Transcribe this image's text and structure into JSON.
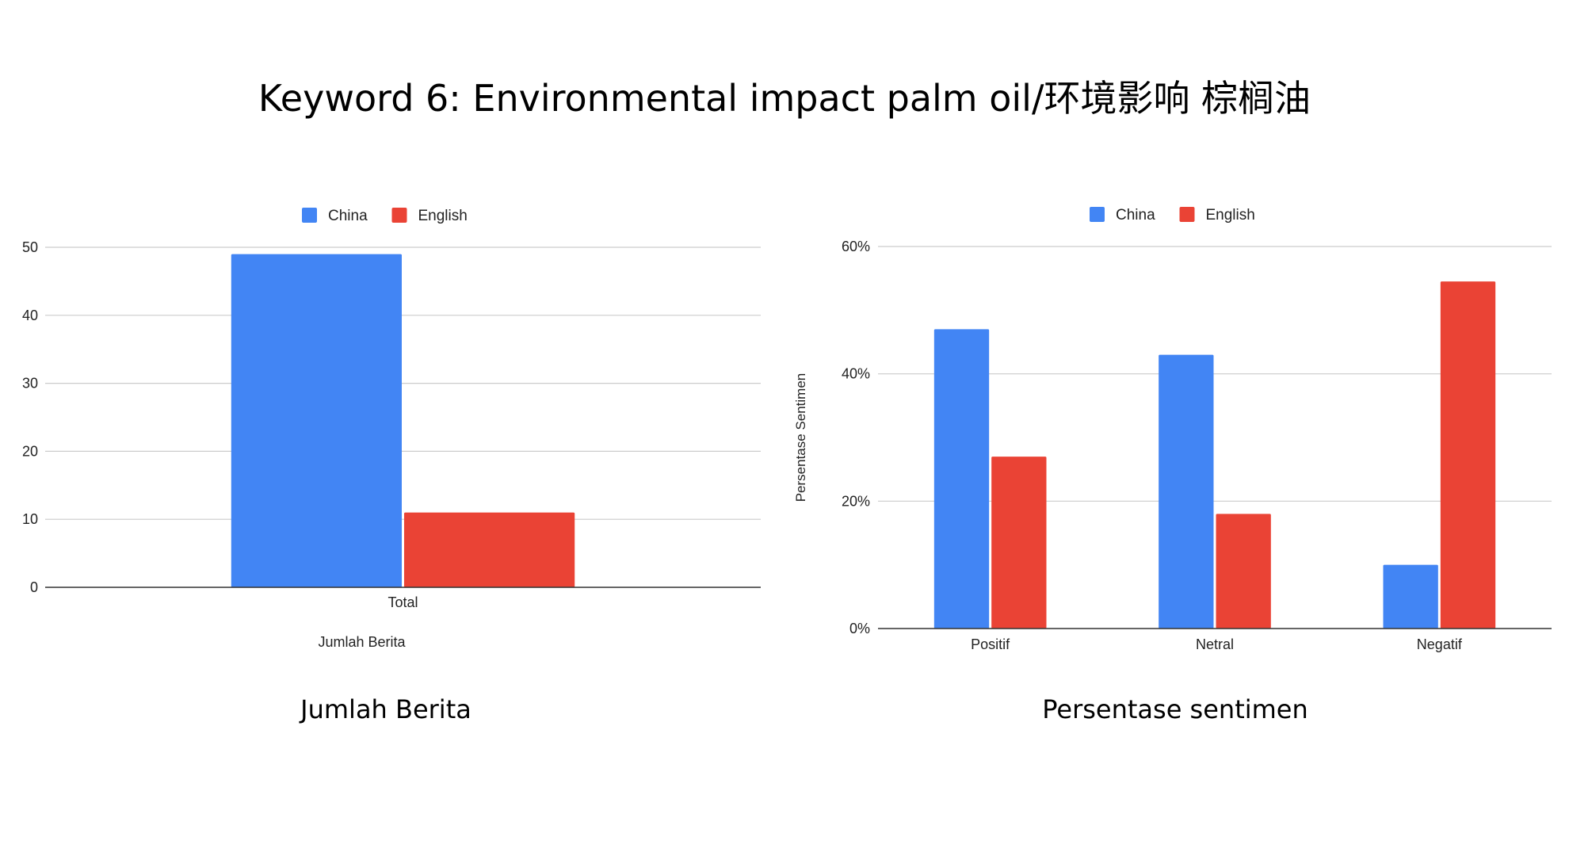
{
  "title": "Keyword 6: Environmental impact palm oil/环境影响 棕榈油",
  "colors": {
    "china": "#4285f4",
    "english": "#ea4335",
    "grid": "#cccccc",
    "axis": "#333333"
  },
  "captions": {
    "left": "Jumlah Berita",
    "right": "Persentase sentimen"
  },
  "chart_data": [
    {
      "type": "bar",
      "categories": [
        "Total"
      ],
      "series": [
        {
          "name": "China",
          "values": [
            49
          ]
        },
        {
          "name": "English",
          "values": [
            11
          ]
        }
      ],
      "title": "",
      "xlabel": "Jumlah Berita",
      "ylabel": "",
      "ylim": [
        0,
        50
      ],
      "yticks": [
        0,
        10,
        20,
        30,
        40,
        50
      ],
      "ytick_format": "number",
      "grid": true,
      "legend": "top"
    },
    {
      "type": "bar",
      "categories": [
        "Positif",
        "Netral",
        "Negatif"
      ],
      "series": [
        {
          "name": "China",
          "values": [
            47,
            43,
            10
          ]
        },
        {
          "name": "English",
          "values": [
            27,
            18,
            54.5
          ]
        }
      ],
      "title": "",
      "xlabel": "",
      "ylabel": "Persentase Sentimen",
      "ylim": [
        0,
        60
      ],
      "yticks": [
        0,
        20,
        40,
        60
      ],
      "ytick_format": "percent",
      "grid": true,
      "legend": "top"
    }
  ]
}
